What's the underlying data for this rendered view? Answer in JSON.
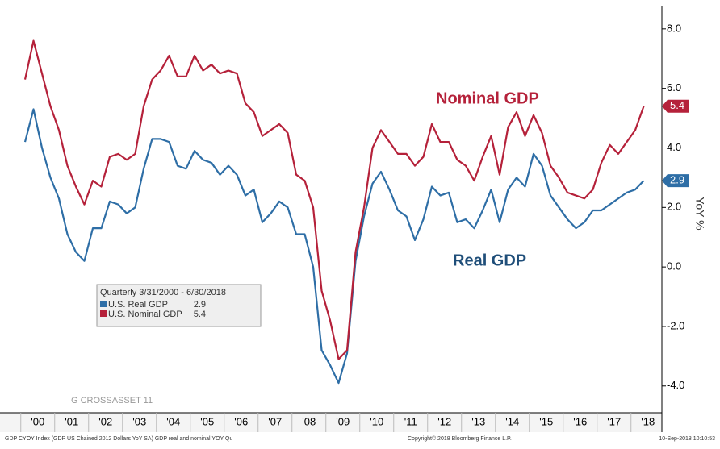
{
  "chart_data": {
    "type": "line",
    "y_axis_label": "YoY %",
    "axis_side": "right",
    "grid": false,
    "categories": [
      null,
      "'00",
      null,
      null,
      null,
      "'01",
      null,
      null,
      null,
      "'02",
      null,
      null,
      null,
      "'03",
      null,
      null,
      null,
      "'04",
      null,
      null,
      null,
      "'05",
      null,
      null,
      null,
      "'06",
      null,
      null,
      null,
      "'07",
      null,
      null,
      null,
      "'08",
      null,
      null,
      null,
      "'09",
      null,
      null,
      null,
      "'10",
      null,
      null,
      null,
      "'11",
      null,
      null,
      null,
      "'12",
      null,
      null,
      null,
      "'13",
      null,
      null,
      null,
      "'14",
      null,
      null,
      null,
      "'15",
      null,
      null,
      null,
      "'16",
      null,
      null,
      null,
      "'17",
      null,
      null,
      null,
      "'18"
    ],
    "ylim": [
      -4.9,
      8.7
    ],
    "yticks": [
      {
        "value": -4,
        "label": "-4.0"
      },
      {
        "value": -2,
        "label": "-2.0"
      },
      {
        "value": 0,
        "label": "0.0"
      },
      {
        "value": 2,
        "label": "2.0"
      },
      {
        "value": 4,
        "label": "4.0"
      },
      {
        "value": 6,
        "label": "6.0"
      },
      {
        "value": 8,
        "label": "8.0"
      }
    ],
    "legend_title": "Quarterly 3/31/2000 - 6/30/2018",
    "series": [
      {
        "name": "U.S. Real GDP",
        "color": "#2e6ea6",
        "label_color": "#1f4e79",
        "annotation": "Real GDP",
        "values": [
          4.2,
          5.3,
          4.0,
          3.0,
          2.3,
          1.1,
          0.5,
          0.2,
          1.3,
          1.3,
          2.2,
          2.1,
          1.8,
          2.0,
          3.3,
          4.3,
          4.3,
          4.2,
          3.4,
          3.3,
          3.9,
          3.6,
          3.5,
          3.1,
          3.4,
          3.1,
          2.4,
          2.6,
          1.5,
          1.8,
          2.2,
          2.0,
          1.1,
          1.1,
          0.0,
          -2.8,
          -3.3,
          -3.9,
          -2.9,
          0.2,
          1.7,
          2.8,
          3.2,
          2.6,
          1.9,
          1.7,
          0.9,
          1.6,
          2.7,
          2.4,
          2.5,
          1.5,
          1.6,
          1.3,
          1.9,
          2.6,
          1.5,
          2.6,
          3.0,
          2.7,
          3.8,
          3.4,
          2.4,
          2.0,
          1.6,
          1.3,
          1.5,
          1.9,
          1.9,
          2.1,
          2.3,
          2.5,
          2.6,
          2.9
        ]
      },
      {
        "name": "U.S. Nominal GDP",
        "color": "#b5213a",
        "label_color": "#b5213a",
        "annotation": "Nominal GDP",
        "values": [
          6.3,
          7.6,
          6.5,
          5.4,
          4.6,
          3.4,
          2.7,
          2.1,
          2.9,
          2.7,
          3.7,
          3.8,
          3.6,
          3.8,
          5.4,
          6.3,
          6.6,
          7.1,
          6.4,
          6.4,
          7.1,
          6.6,
          6.8,
          6.5,
          6.6,
          6.5,
          5.5,
          5.2,
          4.4,
          4.6,
          4.8,
          4.5,
          3.1,
          2.9,
          2.0,
          -0.8,
          -1.8,
          -3.1,
          -2.8,
          0.5,
          2.0,
          4.0,
          4.6,
          4.2,
          3.8,
          3.8,
          3.4,
          3.7,
          4.8,
          4.2,
          4.2,
          3.6,
          3.4,
          2.9,
          3.7,
          4.4,
          3.1,
          4.7,
          5.2,
          4.4,
          5.1,
          4.5,
          3.4,
          3.0,
          2.5,
          2.4,
          2.3,
          2.6,
          3.5,
          4.1,
          3.8,
          4.2,
          4.6,
          5.4
        ]
      }
    ],
    "watermark": "G CROSSASSET 11",
    "footer_left": "GDP CYOY Index (GDP US Chained 2012 Dollars YoY SA) GDP real and nominal YOY  Qu",
    "footer_center": "Copyright© 2018 Bloomberg Finance L.P.",
    "footer_right": "10-Sep-2018 10:10:53"
  }
}
